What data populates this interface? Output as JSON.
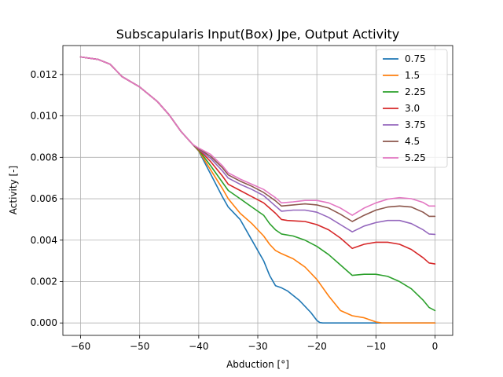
{
  "chart_data": {
    "type": "line",
    "title": "Subscapularis Input(Box) Jpe, Output Activity",
    "xlabel": "Abduction [°]",
    "ylabel": "Activity [-]",
    "xlim": [
      -63,
      3
    ],
    "ylim": [
      -0.0006,
      0.0134
    ],
    "xticks": [
      -60,
      -50,
      -40,
      -30,
      -20,
      -10,
      0
    ],
    "xtick_labels": [
      "−60",
      "−50",
      "−40",
      "−30",
      "−20",
      "−10",
      "0"
    ],
    "yticks": [
      0.0,
      0.002,
      0.004,
      0.006,
      0.008,
      0.01,
      0.012
    ],
    "ytick_labels": [
      "0.000",
      "0.002",
      "0.004",
      "0.006",
      "0.008",
      "0.010",
      "0.012"
    ],
    "grid": true,
    "legend_position": "top-right",
    "series": [
      {
        "name": "0.75",
        "color": "#1f77b4",
        "x": [
          -60,
          -57,
          -55,
          -53,
          -50,
          -47,
          -45,
          -43,
          -41,
          -40,
          -38,
          -36,
          -35,
          -33,
          -31,
          -29,
          -28,
          -27,
          -26,
          -25,
          -23,
          -21,
          -20,
          -19.5,
          -19,
          -17,
          -15,
          -14,
          -12,
          -10,
          -8,
          -5,
          -3,
          -1,
          0
        ],
        "y": [
          0.01285,
          0.01273,
          0.0125,
          0.0119,
          0.0114,
          0.0107,
          0.01005,
          0.00925,
          0.00862,
          0.0083,
          0.0072,
          0.0061,
          0.0056,
          0.005,
          0.004,
          0.003,
          0.0023,
          0.0018,
          0.0017,
          0.00155,
          0.0011,
          0.0005,
          0.00012,
          2e-05,
          0,
          0,
          0,
          0,
          0,
          0,
          0,
          0,
          0,
          0,
          0
        ]
      },
      {
        "name": "1.5",
        "color": "#ff7f0e",
        "x": [
          -60,
          -57,
          -55,
          -53,
          -50,
          -47,
          -45,
          -43,
          -41,
          -40,
          -38,
          -36,
          -35,
          -33,
          -31,
          -29,
          -28,
          -27,
          -26,
          -24,
          -22,
          -20,
          -18,
          -16,
          -14,
          -12,
          -10,
          -9,
          -5,
          0
        ],
        "y": [
          0.01285,
          0.01273,
          0.0125,
          0.0119,
          0.0114,
          0.0107,
          0.01005,
          0.00925,
          0.00862,
          0.00832,
          0.0074,
          0.0065,
          0.006,
          0.0053,
          0.0048,
          0.0042,
          0.0038,
          0.0035,
          0.00335,
          0.0031,
          0.0027,
          0.0021,
          0.0013,
          0.0006,
          0.00035,
          0.00025,
          5e-05,
          0,
          0,
          0
        ]
      },
      {
        "name": "2.25",
        "color": "#2ca02c",
        "x": [
          -60,
          -57,
          -55,
          -53,
          -50,
          -47,
          -45,
          -43,
          -41,
          -40,
          -38,
          -36,
          -35,
          -33,
          -31,
          -29,
          -28,
          -27,
          -26,
          -24,
          -22,
          -20,
          -18,
          -16,
          -14,
          -12,
          -10,
          -8,
          -6,
          -4,
          -2,
          -1,
          0
        ],
        "y": [
          0.01285,
          0.01273,
          0.0125,
          0.0119,
          0.0114,
          0.0107,
          0.01005,
          0.00925,
          0.00862,
          0.00835,
          0.0076,
          0.0068,
          0.0064,
          0.006,
          0.0056,
          0.0052,
          0.0048,
          0.0045,
          0.0043,
          0.0042,
          0.004,
          0.0037,
          0.0033,
          0.0028,
          0.0023,
          0.00235,
          0.00235,
          0.00225,
          0.002,
          0.00165,
          0.0011,
          0.00075,
          0.0006
        ]
      },
      {
        "name": "3.0",
        "color": "#d62728",
        "x": [
          -60,
          -57,
          -55,
          -53,
          -50,
          -47,
          -45,
          -43,
          -41,
          -40,
          -38,
          -36,
          -35,
          -33,
          -31,
          -29,
          -28,
          -27,
          -26,
          -25,
          -22,
          -20,
          -18,
          -16,
          -14,
          -12,
          -10,
          -8,
          -6,
          -4,
          -2,
          -1,
          0
        ],
        "y": [
          0.01285,
          0.01273,
          0.0125,
          0.0119,
          0.0114,
          0.0107,
          0.01005,
          0.00925,
          0.00862,
          0.00838,
          0.0078,
          0.0071,
          0.0067,
          0.0064,
          0.0061,
          0.0058,
          0.00555,
          0.0053,
          0.005,
          0.00495,
          0.0049,
          0.00475,
          0.0045,
          0.0041,
          0.0036,
          0.0038,
          0.0039,
          0.0039,
          0.0038,
          0.00355,
          0.00315,
          0.0029,
          0.00285
        ]
      },
      {
        "name": "3.75",
        "color": "#9467bd",
        "x": [
          -60,
          -57,
          -55,
          -53,
          -50,
          -47,
          -45,
          -43,
          -41,
          -40,
          -38,
          -36,
          -35,
          -33,
          -31,
          -29,
          -28,
          -27,
          -26,
          -24,
          -22,
          -20,
          -18,
          -16,
          -14,
          -12,
          -10,
          -8,
          -6,
          -4,
          -2,
          -1,
          0
        ],
        "y": [
          0.01285,
          0.01273,
          0.0125,
          0.0119,
          0.0114,
          0.0107,
          0.01005,
          0.00925,
          0.00862,
          0.0084,
          0.00795,
          0.00735,
          0.007,
          0.0067,
          0.00645,
          0.00615,
          0.0059,
          0.00565,
          0.0054,
          0.00545,
          0.00545,
          0.00535,
          0.0051,
          0.00475,
          0.0044,
          0.00468,
          0.00485,
          0.00495,
          0.00495,
          0.0048,
          0.0045,
          0.0043,
          0.00428
        ]
      },
      {
        "name": "4.5",
        "color": "#8c564b",
        "x": [
          -60,
          -57,
          -55,
          -53,
          -50,
          -47,
          -45,
          -43,
          -41,
          -40,
          -38,
          -36,
          -35,
          -33,
          -31,
          -29,
          -28,
          -27,
          -26,
          -24,
          -22,
          -20,
          -18,
          -16,
          -14,
          -12,
          -10,
          -8,
          -6,
          -4,
          -2,
          -1,
          0
        ],
        "y": [
          0.01285,
          0.01273,
          0.0125,
          0.0119,
          0.0114,
          0.0107,
          0.01005,
          0.00925,
          0.00862,
          0.00842,
          0.00805,
          0.0075,
          0.00715,
          0.00685,
          0.0066,
          0.0063,
          0.0061,
          0.0059,
          0.00565,
          0.0057,
          0.00575,
          0.0057,
          0.00555,
          0.00525,
          0.0049,
          0.0052,
          0.00545,
          0.0056,
          0.00565,
          0.0056,
          0.00535,
          0.00515,
          0.00515
        ]
      },
      {
        "name": "5.25",
        "color": "#e377c2",
        "x": [
          -60,
          -57,
          -55,
          -53,
          -50,
          -47,
          -45,
          -43,
          -41,
          -40,
          -38,
          -36,
          -35,
          -33,
          -31,
          -29,
          -28,
          -27,
          -26,
          -24,
          -22,
          -20,
          -18,
          -16,
          -14,
          -12,
          -10,
          -8,
          -6,
          -4,
          -2,
          -1,
          0
        ],
        "y": [
          0.01285,
          0.01273,
          0.0125,
          0.0119,
          0.0114,
          0.0107,
          0.01005,
          0.00925,
          0.00862,
          0.00845,
          0.00815,
          0.0076,
          0.00725,
          0.00695,
          0.0067,
          0.00645,
          0.00625,
          0.00605,
          0.0058,
          0.00585,
          0.00592,
          0.00592,
          0.0058,
          0.00555,
          0.0052,
          0.00555,
          0.0058,
          0.00598,
          0.00605,
          0.006,
          0.00582,
          0.00565,
          0.00565
        ]
      }
    ]
  }
}
